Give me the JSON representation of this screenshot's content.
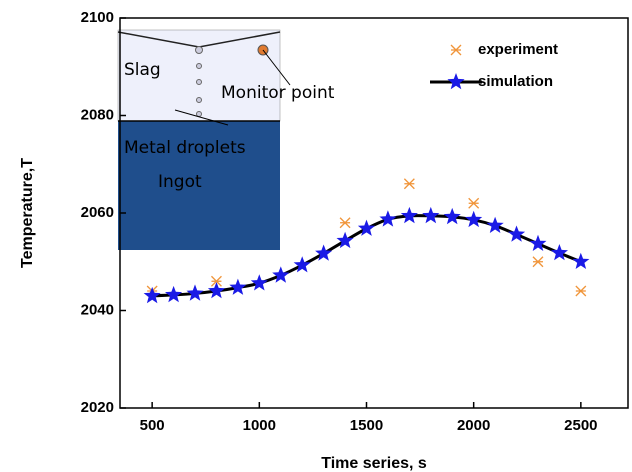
{
  "chart_data": {
    "type": "line",
    "x_label": "Time series, s",
    "y_label": "Temperature,T",
    "xlim": [
      350,
      2720
    ],
    "xticks": [
      500,
      1000,
      1500,
      2000,
      2500
    ],
    "ylim": [
      2020,
      2100
    ],
    "yticks": [
      2020,
      2040,
      2060,
      2080,
      2100
    ],
    "series": [
      {
        "name": "experiment",
        "color": "#f0953a",
        "marker": "asterisk",
        "x": [
          500,
          800,
          1400,
          1700,
          2000,
          2300,
          2500
        ],
        "values": [
          2044,
          2046,
          2058,
          2066,
          2062,
          2050,
          2044
        ]
      },
      {
        "name": "simulation",
        "color": "#1a1ae6",
        "line_color": "#000000",
        "marker": "star",
        "x": [
          500,
          600,
          700,
          800,
          900,
          1000,
          1100,
          1200,
          1300,
          1400,
          1500,
          1600,
          1700,
          1800,
          1900,
          2000,
          2100,
          2200,
          2300,
          2400,
          2500
        ],
        "values": [
          2043,
          2043.2,
          2043.5,
          2044,
          2044.7,
          2045.6,
          2047.2,
          2049.3,
          2051.7,
          2054.3,
          2056.8,
          2058.7,
          2059.4,
          2059.4,
          2059.2,
          2058.6,
          2057.4,
          2055.6,
          2053.7,
          2051.8,
          2050
        ]
      }
    ],
    "inset_labels": [
      "Slag",
      "Monitor point",
      "Metal droplets",
      "Ingot"
    ]
  }
}
